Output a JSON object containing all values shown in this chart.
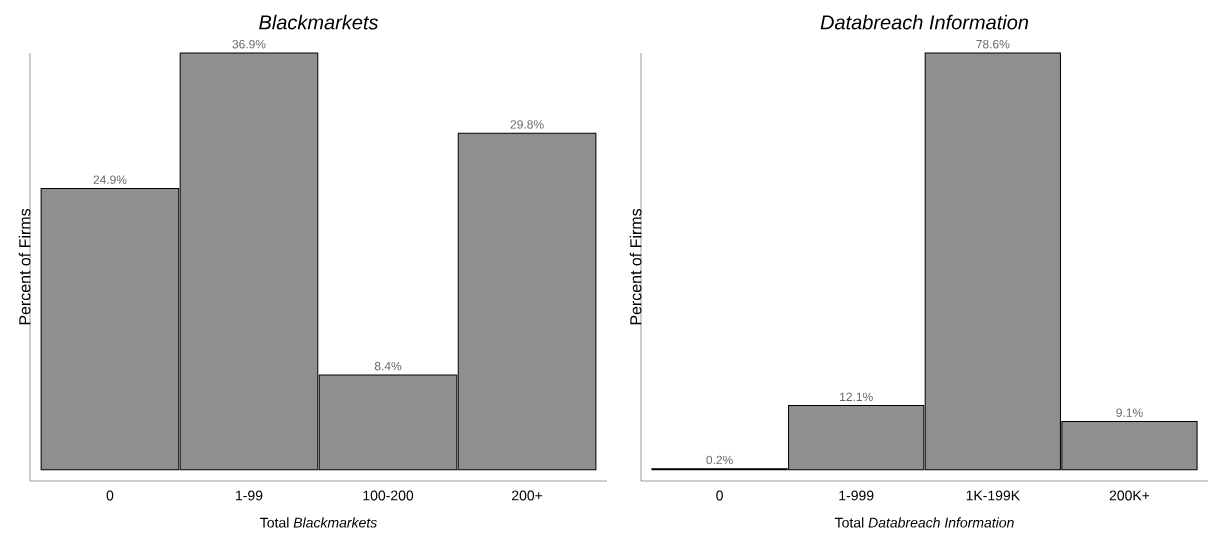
{
  "chart_data": [
    {
      "type": "bar",
      "title": "Blackmarkets",
      "xlabel": "Total *Blackmarkets*",
      "ylabel": "Percent of Firms",
      "categories": [
        "0",
        "1-99",
        "100-200",
        "200+"
      ],
      "values": [
        24.9,
        36.9,
        8.4,
        29.8
      ],
      "value_labels": [
        "24.9%",
        "36.9%",
        "8.4%",
        "29.8%"
      ],
      "color": "#8f8f8f"
    },
    {
      "type": "bar",
      "title": "Databreach Information",
      "xlabel": "Total *Databreach Information*",
      "ylabel": "Percent of Firms",
      "categories": [
        "0",
        "1-999",
        "1K-199K",
        "200K+"
      ],
      "values": [
        0.2,
        12.1,
        78.6,
        9.1
      ],
      "value_labels": [
        "0.2%",
        "12.1%",
        "78.6%",
        "9.1%"
      ],
      "color": "#8f8f8f"
    }
  ]
}
